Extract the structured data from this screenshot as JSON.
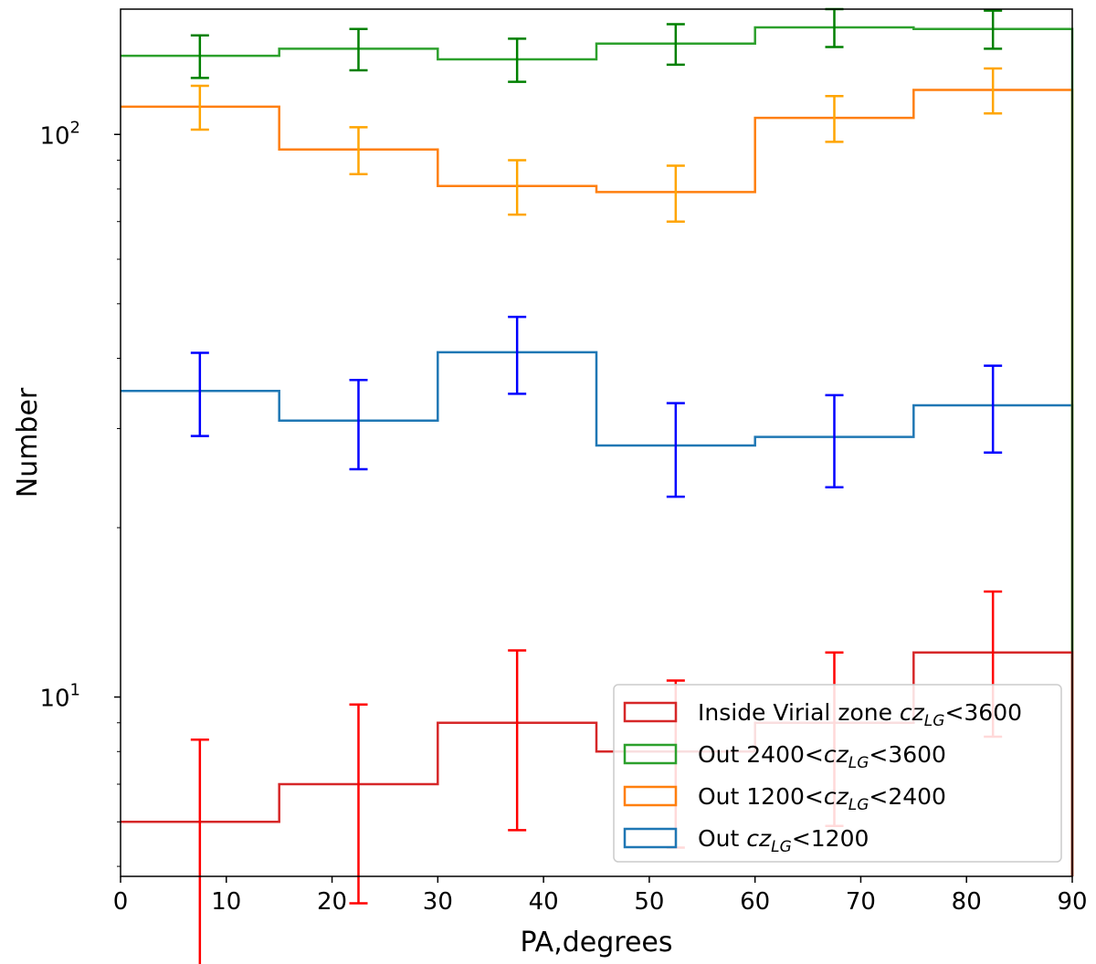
{
  "chart_data": {
    "type": "step-histogram",
    "xlabel": "PA,degrees",
    "ylabel": "Number",
    "yscale": "log",
    "xlim": [
      0,
      90
    ],
    "ylim": [
      4.8,
      167
    ],
    "bin_edges": [
      0,
      15,
      30,
      45,
      60,
      75,
      90
    ],
    "bin_centers": [
      7.5,
      22.5,
      37.5,
      52.5,
      67.5,
      82.5
    ],
    "x_ticks": [
      0,
      10,
      20,
      30,
      40,
      50,
      60,
      70,
      80,
      90
    ],
    "y_ticks": [
      {
        "value": 10,
        "label": "10",
        "exp": "1"
      },
      {
        "value": 100,
        "label": "10",
        "exp": "2"
      }
    ],
    "series": [
      {
        "name": "Inside Virial zone",
        "legend_text": "Inside Virial zone cz_LG<3600",
        "legend_prefix": "Inside Virial zone ",
        "legend_suffix": "<3600",
        "step_color": "#d62728",
        "error_color": "#ff0000",
        "values": [
          6,
          7,
          9,
          8,
          9,
          12
        ],
        "err_low": [
          3.3,
          4.3,
          5.8,
          5.4,
          5.9,
          8.5
        ],
        "err_high": [
          8.4,
          9.7,
          12.1,
          10.7,
          12.0,
          15.4
        ]
      },
      {
        "name": "Out 2400-3600",
        "legend_text": "Out 2400<cz_LG<3600",
        "legend_prefix": "Out 2400<",
        "legend_suffix": "<3600",
        "step_color": "#2ca02c",
        "error_color": "#008000",
        "values": [
          138,
          142,
          136,
          145,
          155,
          154
        ],
        "err_low": [
          126,
          130,
          124,
          133,
          143,
          142
        ],
        "err_high": [
          150,
          154,
          148,
          157,
          167,
          166
        ]
      },
      {
        "name": "Out 1200-2400",
        "legend_text": "Out 1200<cz_LG<2400",
        "legend_prefix": "Out 1200<",
        "legend_suffix": "<2400",
        "step_color": "#ff7f0e",
        "error_color": "#ffa500",
        "values": [
          112,
          94,
          81,
          79,
          107,
          120
        ],
        "err_low": [
          102,
          85,
          72,
          70,
          97,
          109
        ],
        "err_high": [
          122,
          103,
          90,
          88,
          117,
          131
        ]
      },
      {
        "name": "Out <1200",
        "legend_text": "Out cz_LG<1200",
        "legend_prefix": "Out ",
        "legend_suffix": "<1200",
        "step_color": "#1f77b4",
        "error_color": "#0000ff",
        "values": [
          35,
          31,
          41,
          28,
          29,
          33
        ],
        "err_low": [
          29.1,
          25.4,
          34.6,
          22.7,
          23.6,
          27.2
        ],
        "err_high": [
          40.9,
          36.6,
          47.4,
          33.3,
          34.4,
          38.8
        ]
      }
    ],
    "legend_order": [
      0,
      1,
      2,
      3
    ],
    "legend_placement": "lower-right"
  }
}
